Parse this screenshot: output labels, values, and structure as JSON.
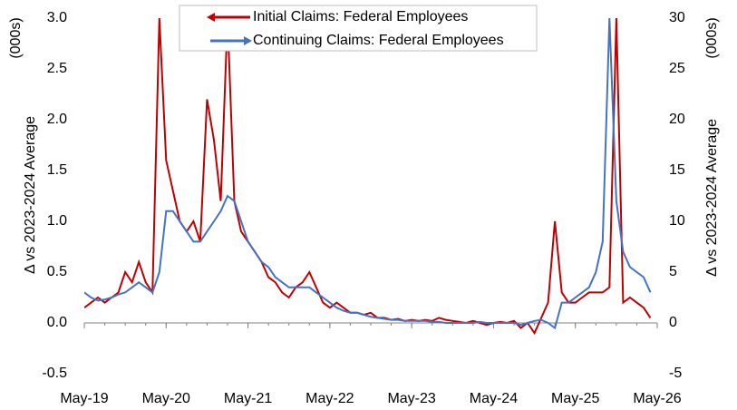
{
  "chart_data": {
    "type": "line",
    "y_unit": "(000s)",
    "y_label": "Δ vs 2023-2024 Average",
    "y2_unit": "(000s)",
    "y2_label": "Δ vs 2023-2024 Average",
    "legend": "top",
    "x": [
      "2019-05",
      "2019-06",
      "2019-07",
      "2019-08",
      "2019-09",
      "2019-10",
      "2019-11",
      "2019-12",
      "2020-01",
      "2020-02",
      "2020-03",
      "2020-04",
      "2020-05",
      "2020-06",
      "2020-07",
      "2020-08",
      "2020-09",
      "2020-10",
      "2020-11",
      "2020-12",
      "2021-01",
      "2021-02",
      "2021-03",
      "2021-04",
      "2021-05",
      "2021-06",
      "2021-07",
      "2021-08",
      "2021-09",
      "2021-10",
      "2021-11",
      "2021-12",
      "2022-01",
      "2022-02",
      "2022-03",
      "2022-04",
      "2022-05",
      "2022-06",
      "2022-07",
      "2022-08",
      "2022-09",
      "2022-10",
      "2022-11",
      "2022-12",
      "2023-01",
      "2023-02",
      "2023-03",
      "2023-04",
      "2023-05",
      "2023-06",
      "2023-07",
      "2023-08",
      "2023-09",
      "2023-10",
      "2023-11",
      "2023-12",
      "2024-01",
      "2024-02",
      "2024-03",
      "2024-04",
      "2024-05",
      "2024-06",
      "2024-07",
      "2024-08",
      "2024-09",
      "2024-10",
      "2024-11",
      "2024-12",
      "2025-01",
      "2025-02",
      "2025-03",
      "2025-04",
      "2025-05",
      "2025-06",
      "2025-07",
      "2025-08",
      "2025-09",
      "2025-10",
      "2025-11",
      "2025-12",
      "2026-01",
      "2026-02",
      "2026-03",
      "2026-04"
    ],
    "series": [
      {
        "name": "Initial Claims: Federal Employees",
        "color": "#c00000",
        "axis": "y",
        "values": [
          0.15,
          0.2,
          0.25,
          0.2,
          0.25,
          0.3,
          0.5,
          0.4,
          0.6,
          0.4,
          0.3,
          3.0,
          1.6,
          1.3,
          1.0,
          0.9,
          1.0,
          0.8,
          2.2,
          1.8,
          1.2,
          3.0,
          1.2,
          0.9,
          0.8,
          0.7,
          0.6,
          0.45,
          0.4,
          0.3,
          0.25,
          0.35,
          0.4,
          0.5,
          0.35,
          0.2,
          0.15,
          0.2,
          0.15,
          0.1,
          0.1,
          0.08,
          0.1,
          0.05,
          0.05,
          0.03,
          0.04,
          0.02,
          0.03,
          0.02,
          0.03,
          0.02,
          0.05,
          0.03,
          0.02,
          0.01,
          0.0,
          0.02,
          0.0,
          -0.02,
          0.0,
          0.01,
          0.0,
          0.02,
          -0.05,
          0.0,
          -0.1,
          0.05,
          0.2,
          1.0,
          0.3,
          0.2,
          0.2,
          0.25,
          0.3,
          0.3,
          0.3,
          0.35,
          3.0,
          0.2,
          0.25,
          0.2,
          0.15,
          0.05
        ]
      },
      {
        "name": "Continuing Claims: Federal Employees",
        "color": "#4472c4",
        "axis": "y2",
        "values": [
          3,
          2.5,
          2.2,
          2.3,
          2.5,
          2.8,
          3,
          3.5,
          4,
          3.5,
          3,
          5,
          11,
          11,
          10,
          9,
          8,
          8,
          9,
          10,
          11,
          12.5,
          12,
          10,
          8,
          7,
          6,
          5.5,
          4.5,
          4,
          3.5,
          3.5,
          3.5,
          3.5,
          3,
          2.5,
          2,
          1.5,
          1.2,
          1,
          1,
          0.8,
          0.6,
          0.5,
          0.4,
          0.3,
          0.3,
          0.2,
          0.2,
          0.2,
          0.2,
          0.1,
          0.1,
          0,
          0,
          0,
          0,
          0,
          0.1,
          0,
          0,
          0,
          0,
          0,
          -0.2,
          0,
          0.2,
          0.3,
          0,
          -0.5,
          2,
          2,
          2.5,
          3,
          3.5,
          5,
          8,
          30,
          12,
          7,
          5.5,
          5,
          4.5,
          3
        ]
      }
    ],
    "xlim": [
      "2019-05",
      "2026-05"
    ],
    "xticks": [
      {
        "value": "2019-05",
        "label": "May-19"
      },
      {
        "value": "2020-05",
        "label": "May-20"
      },
      {
        "value": "2021-05",
        "label": "May-21"
      },
      {
        "value": "2022-05",
        "label": "May-22"
      },
      {
        "value": "2023-05",
        "label": "May-23"
      },
      {
        "value": "2024-05",
        "label": "May-24"
      },
      {
        "value": "2025-05",
        "label": "May-25"
      },
      {
        "value": "2026-05",
        "label": "May-26"
      }
    ],
    "ylim": [
      -0.5,
      3.0
    ],
    "yticks": [
      -0.5,
      {
        "value": 0,
        "label": "0.0"
      },
      0.5,
      {
        "value": 1,
        "label": "1.0"
      },
      1.5,
      {
        "value": 2,
        "label": "2.0"
      },
      2.5,
      {
        "value": 3,
        "label": "3.0"
      }
    ],
    "y2lim": [
      -5,
      30
    ],
    "y2ticks": [
      -5,
      0,
      5,
      10,
      15,
      20,
      25,
      30
    ]
  }
}
